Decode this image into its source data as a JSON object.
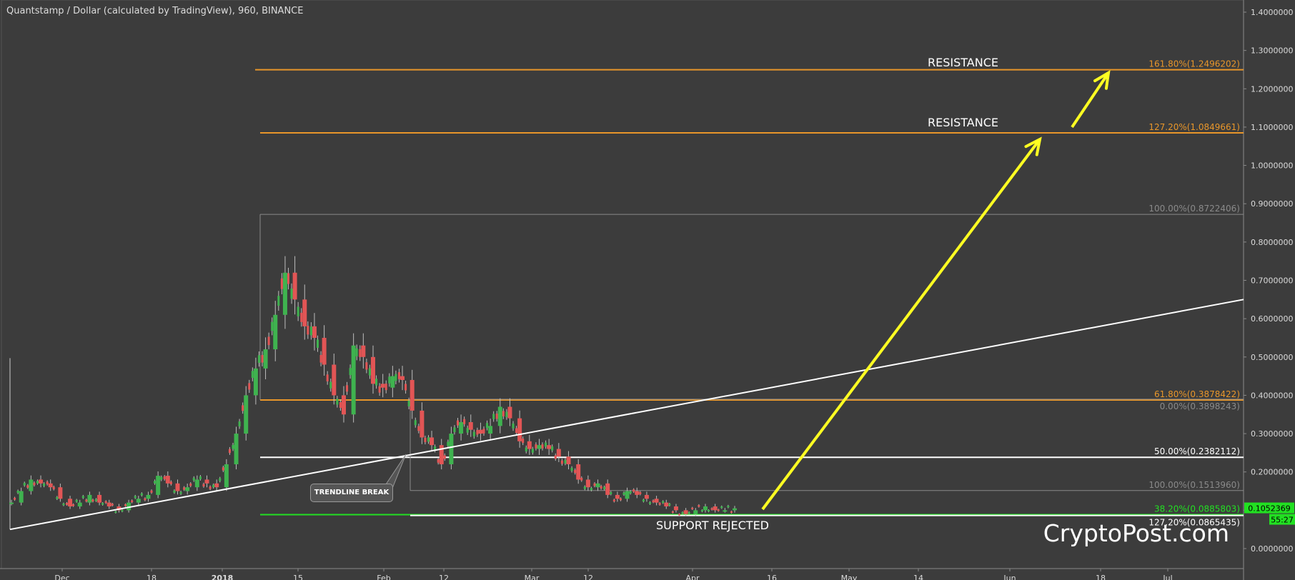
{
  "title": "Quantstamp / Dollar (calculated by TradingView), 960, BINANCE",
  "watermark": "CryptoPost.com",
  "colors": {
    "background": "#3c3c3c",
    "orange": "#e8962a",
    "green": "#22e022",
    "yellow": "#ffff22",
    "white": "#ffffff",
    "gray": "#8a8a8a",
    "candle_up": "#3fb34f",
    "candle_down": "#e25555"
  },
  "chart_data": {
    "type": "candlestick",
    "ylim": [
      0.0,
      1.4
    ],
    "yaxis_ticks": [
      "0.0000000",
      "0.1000000",
      "0.2000000",
      "0.3000000",
      "0.4000000",
      "0.5000000",
      "0.6000000",
      "0.7000000",
      "0.8000000",
      "0.9000000",
      "1.0000000",
      "1.1000000",
      "1.2000000",
      "1.3000000",
      "1.4000000"
    ],
    "xaxis_ticks": [
      "Dec",
      "18",
      "2018",
      "15",
      "Feb",
      "12",
      "Mar",
      "12",
      "Apr",
      "16",
      "May",
      "14",
      "Jun",
      "18",
      "Jul"
    ],
    "price_series_close": [
      0.12,
      0.15,
      0.18,
      0.17,
      0.16,
      0.13,
      0.11,
      0.12,
      0.14,
      0.12,
      0.11,
      0.1,
      0.12,
      0.13,
      0.14,
      0.19,
      0.17,
      0.15,
      0.16,
      0.18,
      0.17,
      0.16,
      0.22,
      0.3,
      0.4,
      0.47,
      0.52,
      0.61,
      0.72,
      0.65,
      0.58,
      0.55,
      0.48,
      0.4,
      0.35,
      0.53,
      0.5,
      0.43,
      0.42,
      0.45,
      0.44,
      0.36,
      0.29,
      0.27,
      0.22,
      0.3,
      0.33,
      0.31,
      0.3,
      0.32,
      0.37,
      0.34,
      0.28,
      0.26,
      0.27,
      0.26,
      0.24,
      0.22,
      0.18,
      0.16,
      0.17,
      0.14,
      0.13,
      0.15,
      0.14,
      0.13,
      0.12,
      0.11,
      0.1,
      0.09,
      0.1,
      0.11,
      0.1,
      0.1,
      0.105
    ],
    "levels": [
      {
        "label": "161.80%(1.2496202)",
        "value": 1.2496202,
        "color": "orange"
      },
      {
        "label": "127.20%(1.0849661)",
        "value": 1.0849661,
        "color": "orange"
      },
      {
        "label": "100.00%(0.8722406)",
        "value": 0.8722406,
        "color": "gray"
      },
      {
        "label": "61.80%(0.3878422)",
        "value": 0.3878422,
        "color": "orange"
      },
      {
        "label": "0.00%(0.3898243)",
        "value": 0.3898243,
        "color": "gray"
      },
      {
        "label": "50.00%(0.2382112)",
        "value": 0.2382112,
        "color": "white"
      },
      {
        "label": "100.00%(0.1513960)",
        "value": 0.151396,
        "color": "gray"
      },
      {
        "label": "38.20%(0.0885803)",
        "value": 0.0885803,
        "color": "green"
      },
      {
        "label": "127.20%(0.0865435)",
        "value": 0.0865435,
        "color": "white"
      }
    ],
    "current_price": "0.1052369",
    "countdown": "55:27",
    "annotations": {
      "resistance_upper": "RESISTANCE",
      "resistance_lower": "RESISTANCE",
      "support": "SUPPORT REJECTED",
      "trendline_break": "TRENDLINE BREAK"
    },
    "grid": false,
    "trendline": {
      "from_value": 0.05,
      "to_value": 0.65
    }
  }
}
